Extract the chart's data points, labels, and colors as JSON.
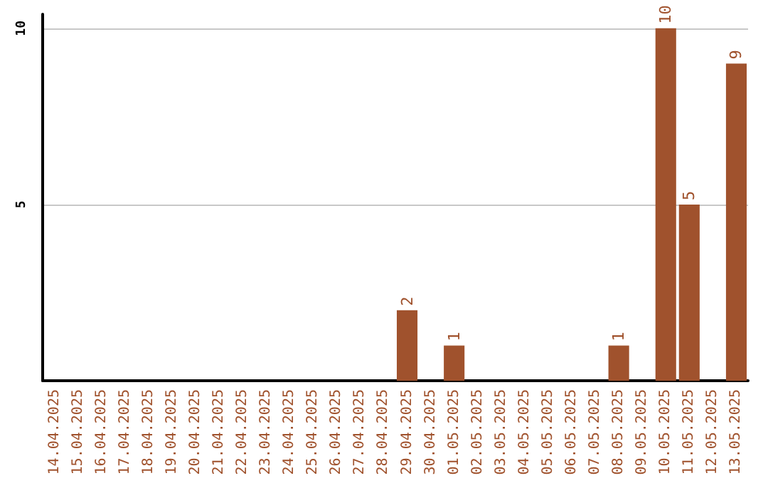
{
  "chart_data": {
    "type": "bar",
    "categories": [
      "14.04.2025",
      "15.04.2025",
      "16.04.2025",
      "17.04.2025",
      "18.04.2025",
      "19.04.2025",
      "20.04.2025",
      "21.04.2025",
      "22.04.2025",
      "23.04.2025",
      "24.04.2025",
      "25.04.2025",
      "26.04.2025",
      "27.04.2025",
      "28.04.2025",
      "29.04.2025",
      "30.04.2025",
      "01.05.2025",
      "02.05.2025",
      "03.05.2025",
      "04.05.2025",
      "05.05.2025",
      "06.05.2025",
      "07.05.2025",
      "08.05.2025",
      "09.05.2025",
      "10.05.2025",
      "11.05.2025",
      "12.05.2025",
      "13.05.2025"
    ],
    "values": [
      0,
      0,
      0,
      0,
      0,
      0,
      0,
      0,
      0,
      0,
      0,
      0,
      0,
      0,
      0,
      2,
      0,
      1,
      0,
      0,
      0,
      0,
      0,
      0,
      1,
      0,
      10,
      5,
      0,
      9
    ],
    "value_labels": [
      null,
      null,
      null,
      null,
      null,
      null,
      null,
      null,
      null,
      null,
      null,
      null,
      null,
      null,
      null,
      "2",
      null,
      "1",
      null,
      null,
      null,
      null,
      null,
      null,
      "1",
      null,
      "10",
      "5",
      null,
      "9"
    ],
    "color": "#a0522d",
    "ylim": [
      0,
      10.4
    ],
    "yticks": [
      5,
      10
    ],
    "grid": "y"
  }
}
